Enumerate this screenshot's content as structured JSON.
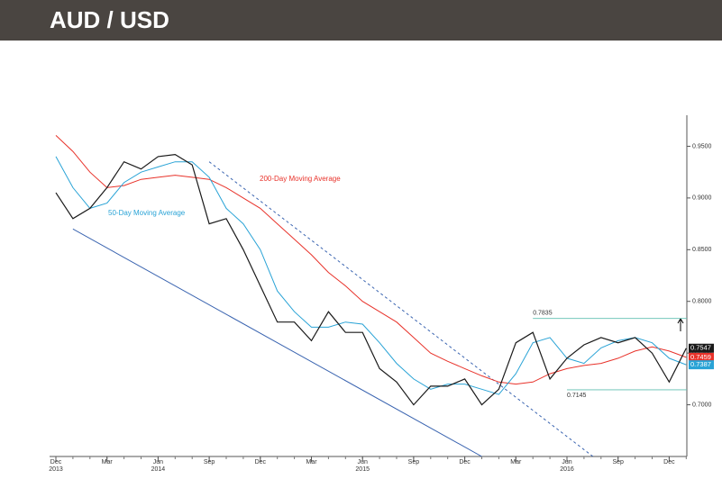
{
  "chart_data": {
    "type": "line",
    "title": "AUD / USD",
    "x": [
      "2013-12",
      "2014-01",
      "2014-02",
      "2014-03",
      "2014-04",
      "2014-05",
      "2014-06",
      "2014-07",
      "2014-08",
      "2014-09",
      "2014-10",
      "2014-11",
      "2014-12",
      "2015-01",
      "2015-02",
      "2015-03",
      "2015-04",
      "2015-05",
      "2015-06",
      "2015-07",
      "2015-08",
      "2015-09",
      "2015-10",
      "2015-11",
      "2015-12",
      "2016-01",
      "2016-02",
      "2016-03",
      "2016-04",
      "2016-05",
      "2016-06",
      "2016-07",
      "2016-08",
      "2016-09",
      "2016-10",
      "2016-11",
      "2016-12",
      "2017-01"
    ],
    "series": [
      {
        "color": "#1a1a1a",
        "values": [
          0.905,
          0.88,
          0.89,
          0.91,
          0.935,
          0.928,
          0.94,
          0.942,
          0.932,
          0.875,
          0.88,
          0.85,
          0.815,
          0.78,
          0.78,
          0.762,
          0.79,
          0.77,
          0.77,
          0.735,
          0.722,
          0.7,
          0.718,
          0.718,
          0.725,
          0.7,
          0.715,
          0.76,
          0.77,
          0.725,
          0.745,
          0.758,
          0.765,
          0.76,
          0.765,
          0.75,
          0.722,
          0.7547
        ]
      },
      {
        "name": "50-Day Moving Average",
        "color": "#29a3d6",
        "values": [
          0.94,
          0.91,
          0.89,
          0.895,
          0.915,
          0.925,
          0.93,
          0.935,
          0.935,
          0.92,
          0.89,
          0.875,
          0.85,
          0.81,
          0.79,
          0.775,
          0.775,
          0.78,
          0.778,
          0.76,
          0.74,
          0.725,
          0.715,
          0.72,
          0.72,
          0.715,
          0.71,
          0.73,
          0.76,
          0.765,
          0.745,
          0.74,
          0.755,
          0.762,
          0.765,
          0.76,
          0.745,
          0.7387
        ]
      },
      {
        "name": "200-Day Moving Average",
        "color": "#e8322a",
        "values": [
          0.9605,
          0.945,
          0.925,
          0.91,
          0.912,
          0.918,
          0.92,
          0.922,
          0.92,
          0.918,
          0.91,
          0.9,
          0.89,
          0.875,
          0.86,
          0.845,
          0.828,
          0.815,
          0.8,
          0.79,
          0.78,
          0.765,
          0.75,
          0.742,
          0.735,
          0.728,
          0.722,
          0.72,
          0.722,
          0.73,
          0.735,
          0.738,
          0.74,
          0.745,
          0.752,
          0.756,
          0.752,
          0.7459
        ]
      }
    ],
    "ylim": [
      0.65,
      0.98
    ],
    "yticks": [
      {
        "value": 0.7,
        "label": "0.7000"
      },
      {
        "value": 0.75,
        "label": "0.7500"
      },
      {
        "value": 0.8,
        "label": "0.8000"
      },
      {
        "value": 0.85,
        "label": "0.8500"
      },
      {
        "value": 0.9,
        "label": "0.9000"
      },
      {
        "value": 0.95,
        "label": "0.9500"
      }
    ],
    "xticks": [
      {
        "value": "2013-12",
        "label": "Dec"
      },
      {
        "value": "2014-03",
        "label": "Mar"
      },
      {
        "value": "2014-06",
        "label": "Jun"
      },
      {
        "value": "2014-09",
        "label": "Sep"
      },
      {
        "value": "2014-12",
        "label": "Dec"
      },
      {
        "value": "2015-03",
        "label": "Mar"
      },
      {
        "value": "2015-06",
        "label": "Jun"
      },
      {
        "value": "2015-09",
        "label": "Sep"
      },
      {
        "value": "2015-12",
        "label": "Dec"
      },
      {
        "value": "2016-03",
        "label": "Mar"
      },
      {
        "value": "2016-06",
        "label": "Jun"
      },
      {
        "value": "2016-09",
        "label": "Sep"
      },
      {
        "value": "2016-12",
        "label": "Dec"
      }
    ],
    "year_labels": [
      {
        "value": "2013-12",
        "label": "2013"
      },
      {
        "value": "2014-06",
        "label": "2014"
      },
      {
        "value": "2015-06",
        "label": "2015"
      },
      {
        "value": "2016-06",
        "label": "2016"
      }
    ],
    "levels": [
      {
        "value": 0.7835,
        "from": "2016-04"
      },
      {
        "value": 0.7145,
        "from": "2016-06"
      }
    ],
    "trendlines": [
      {
        "x": [
          "2014-01",
          "2016-01"
        ],
        "values": [
          0.87,
          0.65
        ],
        "dashed": false,
        "color": "#3a64b0"
      },
      {
        "x": [
          "2014-09",
          "2016-08"
        ],
        "values": [
          0.935,
          0.644
        ],
        "dashed": true,
        "color": "#3a64b0"
      }
    ]
  }
}
